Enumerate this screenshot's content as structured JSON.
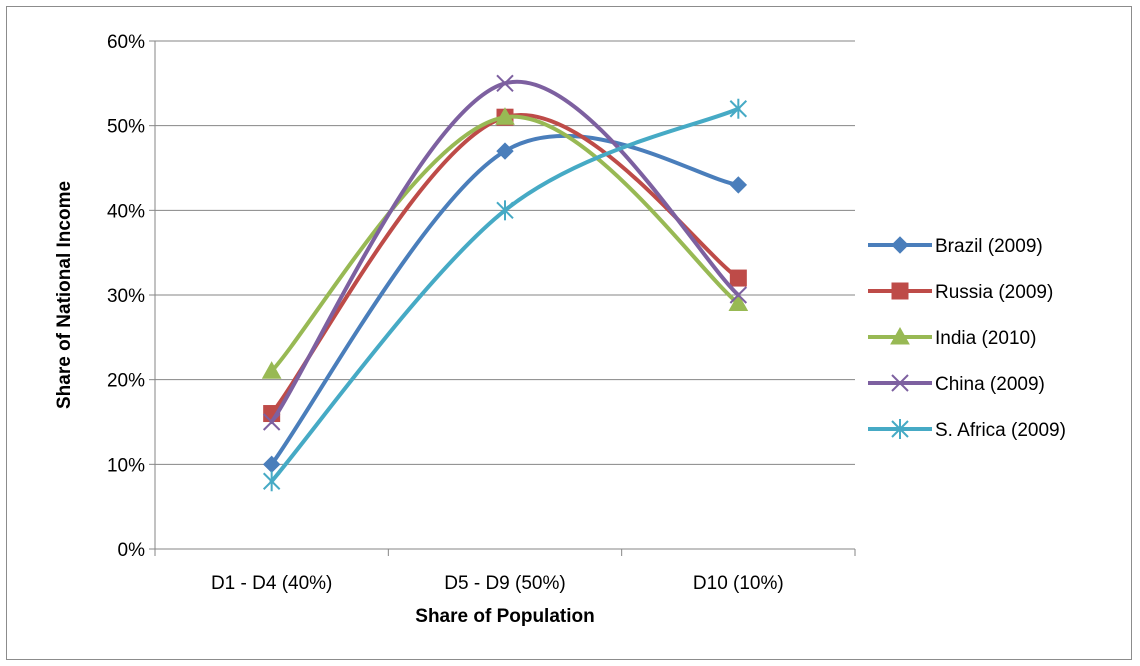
{
  "chart_data": {
    "type": "line",
    "title": "",
    "xlabel": "Share of Population",
    "ylabel": "Share of National Income",
    "categories": [
      "D1 - D4 (40%)",
      "D5 - D9 (50%)",
      "D10 (10%)"
    ],
    "y_ticks": [
      "0%",
      "10%",
      "20%",
      "30%",
      "40%",
      "50%",
      "60%"
    ],
    "ylim": [
      0,
      60
    ],
    "y_unit": "%",
    "grid": "horizontal",
    "smoothed": true,
    "legend_position": "right",
    "series": [
      {
        "name": "Brazil (2009)",
        "values": [
          10,
          47,
          43
        ],
        "color": "#4a7ebb",
        "marker": "diamond"
      },
      {
        "name": "Russia (2009)",
        "values": [
          16,
          51,
          32
        ],
        "color": "#be4b48",
        "marker": "square"
      },
      {
        "name": "India (2010)",
        "values": [
          21,
          51,
          29
        ],
        "color": "#98b954",
        "marker": "triangle"
      },
      {
        "name": "China (2009)",
        "values": [
          15,
          55,
          30
        ],
        "color": "#7d60a0",
        "marker": "x"
      },
      {
        "name": "S. Africa (2009)",
        "values": [
          8,
          40,
          52
        ],
        "color": "#46aac5",
        "marker": "star"
      }
    ]
  }
}
